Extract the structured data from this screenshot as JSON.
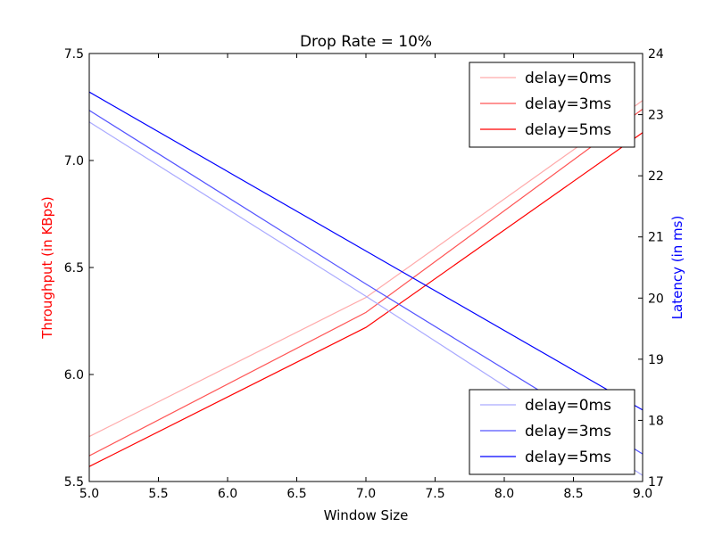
{
  "chart_data": {
    "type": "line",
    "title": "Drop Rate = 10%",
    "xlabel": "Window Size",
    "ylabel_left": "Throughput (in KBps)",
    "ylabel_right": "Latency (in ms)",
    "xlim": [
      5.0,
      9.0
    ],
    "ylim_left": [
      5.5,
      7.5
    ],
    "ylim_right": [
      17,
      24
    ],
    "xticks": [
      "5.0",
      "5.5",
      "6.0",
      "6.5",
      "7.0",
      "7.5",
      "8.0",
      "8.5",
      "9.0"
    ],
    "yticks_left": [
      "5.5",
      "6.0",
      "6.5",
      "7.0",
      "7.5"
    ],
    "yticks_right": [
      "17",
      "18",
      "19",
      "20",
      "21",
      "22",
      "23",
      "24"
    ],
    "grid": false,
    "x": [
      5,
      7,
      9
    ],
    "throughput_series": [
      {
        "name": "delay=0ms",
        "values": [
          5.71,
          6.36,
          7.28
        ],
        "color": "#ffaaaa"
      },
      {
        "name": "delay=3ms",
        "values": [
          5.62,
          6.29,
          7.24
        ],
        "color": "#ff5555"
      },
      {
        "name": "delay=5ms",
        "values": [
          5.57,
          6.22,
          7.13
        ],
        "color": "#ff0000"
      }
    ],
    "latency_series": [
      {
        "name": "delay=0ms",
        "values": [
          22.88,
          20.03,
          17.1
        ],
        "color": "#aaaaff"
      },
      {
        "name": "delay=3ms",
        "values": [
          23.07,
          20.23,
          17.45
        ],
        "color": "#5555ff"
      },
      {
        "name": "delay=5ms",
        "values": [
          23.37,
          20.77,
          18.17
        ],
        "color": "#0000ff"
      }
    ],
    "legend_throughput_position": "top-right",
    "legend_latency_position": "bottom-right"
  }
}
